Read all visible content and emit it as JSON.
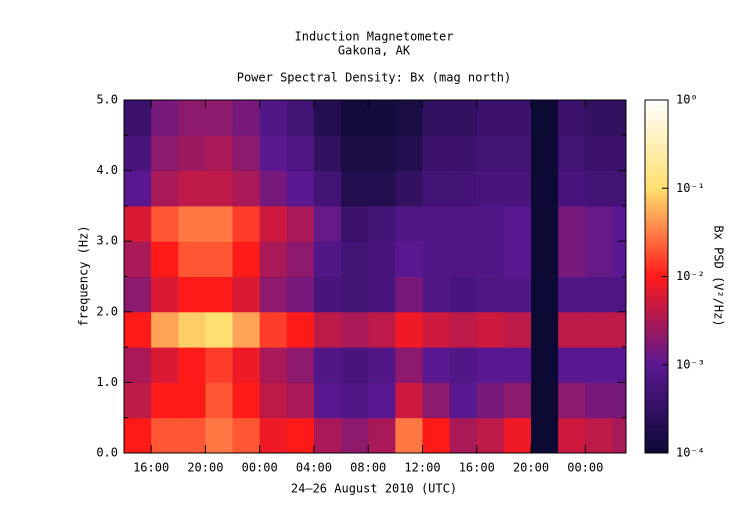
{
  "chart_data": {
    "type": "spectrogram",
    "title": "Induction Magnetometer",
    "subtitle": "Gakona, AK",
    "plot_title": "Power Spectral Density: Bx (mag north)",
    "xlabel": "24–26 August 2010 (UTC)",
    "ylabel": "frequency (Hz)",
    "colorbar_label": "Bx PSD (V²/Hz)",
    "xlim": [
      14,
      51
    ],
    "xticks": [
      {
        "value": 16,
        "label": "16:00"
      },
      {
        "value": 20,
        "label": "20:00"
      },
      {
        "value": 24,
        "label": "00:00"
      },
      {
        "value": 28,
        "label": "04:00"
      },
      {
        "value": 32,
        "label": "08:00"
      },
      {
        "value": 36,
        "label": "12:00"
      },
      {
        "value": 40,
        "label": "16:00"
      },
      {
        "value": 44,
        "label": "20:00"
      },
      {
        "value": 48,
        "label": "00:00"
      }
    ],
    "ylim": [
      0,
      5
    ],
    "yticks": [
      {
        "value": 0,
        "label": "0.0"
      },
      {
        "value": 1,
        "label": "1.0"
      },
      {
        "value": 2,
        "label": "2.0"
      },
      {
        "value": 3,
        "label": "3.0"
      },
      {
        "value": 4,
        "label": "4.0"
      },
      {
        "value": 5,
        "label": "5.0"
      }
    ],
    "yminorticks": [
      0.5,
      1.5,
      2.5,
      3.5,
      4.5
    ],
    "clim": [
      0.0001,
      1
    ],
    "cscale": "log",
    "cticks": [
      {
        "value": 0.0001,
        "label": "10⁻⁴"
      },
      {
        "value": 0.001,
        "label": "10⁻³"
      },
      {
        "value": 0.01,
        "label": "10⁻²"
      },
      {
        "value": 0.1,
        "label": "10⁻¹"
      },
      {
        "value": 1,
        "label": "10⁰"
      }
    ],
    "colormap": [
      "#0c0a35",
      "#5a1890",
      "#ff1a1a",
      "#ffe070",
      "#ffffff"
    ],
    "xbins": [
      14,
      16,
      18,
      20,
      22,
      24,
      26,
      28,
      30,
      32,
      34,
      36,
      38,
      40,
      42,
      44,
      46,
      48,
      50,
      51
    ],
    "ybins": [
      0,
      0.5,
      1,
      1.5,
      2,
      2.5,
      3,
      3.5,
      4,
      4.5,
      5
    ],
    "z": [
      [
        0.01,
        0.02,
        0.02,
        0.03,
        0.02,
        0.008,
        0.01,
        0.003,
        0.002,
        0.003,
        0.03,
        0.01,
        0.003,
        0.004,
        0.008,
        0.0001,
        0.005,
        0.004,
        0.003
      ],
      [
        0.004,
        0.01,
        0.01,
        0.02,
        0.01,
        0.004,
        0.003,
        0.001,
        0.0008,
        0.001,
        0.005,
        0.002,
        0.001,
        0.0015,
        0.002,
        0.0001,
        0.002,
        0.0015,
        0.0015
      ],
      [
        0.003,
        0.006,
        0.01,
        0.015,
        0.008,
        0.003,
        0.002,
        0.0008,
        0.0006,
        0.0008,
        0.002,
        0.001,
        0.0008,
        0.001,
        0.001,
        0.0001,
        0.001,
        0.001,
        0.001
      ],
      [
        0.01,
        0.05,
        0.08,
        0.1,
        0.05,
        0.015,
        0.01,
        0.004,
        0.003,
        0.004,
        0.008,
        0.005,
        0.004,
        0.005,
        0.004,
        0.0001,
        0.004,
        0.004,
        0.004
      ],
      [
        0.002,
        0.006,
        0.01,
        0.01,
        0.006,
        0.002,
        0.0015,
        0.0006,
        0.0005,
        0.0006,
        0.0015,
        0.0008,
        0.0006,
        0.0007,
        0.0008,
        0.0001,
        0.0008,
        0.0007,
        0.0007
      ],
      [
        0.003,
        0.01,
        0.02,
        0.02,
        0.01,
        0.003,
        0.002,
        0.0008,
        0.0005,
        0.0006,
        0.001,
        0.0008,
        0.0007,
        0.0008,
        0.001,
        0.0001,
        0.0015,
        0.0012,
        0.001
      ],
      [
        0.006,
        0.02,
        0.03,
        0.03,
        0.015,
        0.005,
        0.003,
        0.0012,
        0.0004,
        0.0005,
        0.0008,
        0.0008,
        0.0007,
        0.0008,
        0.001,
        0.0001,
        0.0015,
        0.0012,
        0.001
      ],
      [
        0.001,
        0.003,
        0.004,
        0.004,
        0.003,
        0.0015,
        0.001,
        0.0005,
        0.0002,
        0.0002,
        0.0003,
        0.0005,
        0.0005,
        0.0006,
        0.0006,
        0.0001,
        0.0006,
        0.0005,
        0.0005
      ],
      [
        0.0006,
        0.002,
        0.0025,
        0.003,
        0.002,
        0.001,
        0.0007,
        0.0003,
        0.00015,
        0.00015,
        0.0002,
        0.0004,
        0.0004,
        0.0005,
        0.0005,
        0.0001,
        0.0005,
        0.0004,
        0.0004
      ],
      [
        0.0004,
        0.0015,
        0.002,
        0.002,
        0.0015,
        0.0008,
        0.0005,
        0.0002,
        0.00012,
        0.00012,
        0.00015,
        0.0003,
        0.0003,
        0.0004,
        0.0004,
        0.0001,
        0.0004,
        0.0003,
        0.0003
      ]
    ]
  }
}
